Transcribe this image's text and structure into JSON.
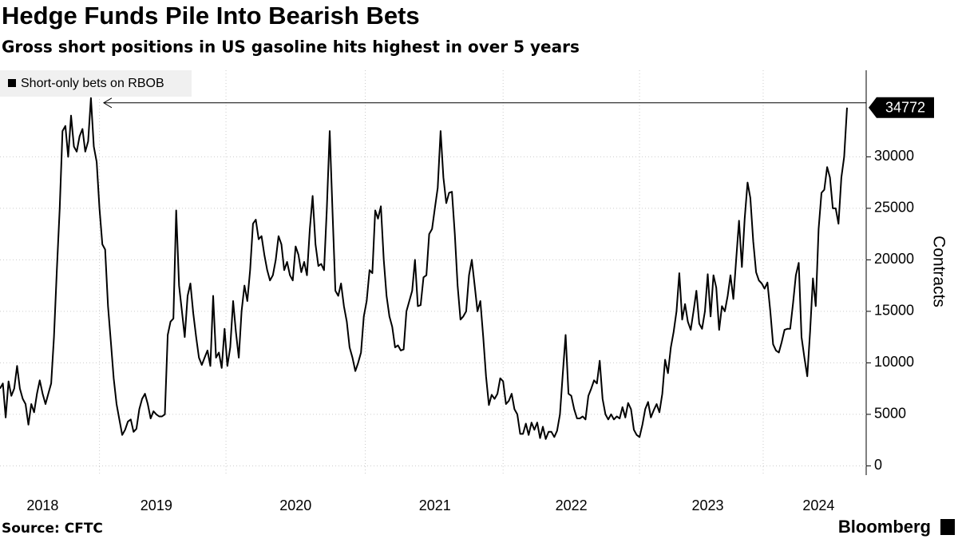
{
  "chart_data": {
    "type": "line",
    "title": "Hedge Funds Pile Into Bearish Bets",
    "subtitle": "Gross short positions in US gasoline hits highest in over 5 years",
    "ylabel": "Contracts",
    "source": "Source: CFTC",
    "brand": "Bloomberg",
    "legend": "upper left",
    "grid": true,
    "ylim": [
      -900,
      38400
    ],
    "yticks": [
      0,
      5000,
      10000,
      15000,
      20000,
      25000,
      30000
    ],
    "categories": [
      null,
      null,
      null,
      null,
      null,
      null,
      null,
      null,
      null,
      null,
      null,
      null,
      null,
      null,
      null,
      "2018",
      null,
      null,
      null,
      null,
      null,
      null,
      null,
      null,
      null,
      null,
      null,
      null,
      null,
      null,
      null,
      null,
      null,
      null,
      null,
      null,
      null,
      null,
      null,
      null,
      null,
      null,
      null,
      null,
      null,
      null,
      null,
      null,
      null,
      null,
      null,
      null,
      null,
      null,
      null,
      "2019",
      null,
      null,
      null,
      null,
      null,
      null,
      null,
      null,
      null,
      null,
      null,
      null,
      null,
      null,
      null,
      null,
      null,
      null,
      null,
      null,
      null,
      null,
      null,
      null,
      null,
      null,
      null,
      null,
      null,
      null,
      null,
      null,
      null,
      null,
      null,
      null,
      null,
      null,
      null,
      null,
      null,
      null,
      null,
      null,
      null,
      null,
      null,
      null,
      "2020",
      null,
      null,
      null,
      null,
      null,
      null,
      null,
      null,
      null,
      null,
      null,
      null,
      null,
      null,
      null,
      null,
      null,
      null,
      null,
      null,
      null,
      null,
      null,
      null,
      null,
      null,
      null,
      null,
      null,
      null,
      null,
      null,
      null,
      null,
      null,
      null,
      null,
      null,
      null,
      null,
      null,
      null,
      null,
      null,
      null,
      null,
      null,
      null,
      "2021",
      null,
      null,
      null,
      null,
      null,
      null,
      null,
      null,
      null,
      null,
      null,
      null,
      null,
      null,
      null,
      null,
      null,
      null,
      null,
      null,
      null,
      null,
      null,
      null,
      null,
      null,
      null,
      null,
      null,
      null,
      null,
      null,
      null,
      null,
      null,
      null,
      null,
      null,
      null,
      null,
      null,
      null,
      null,
      null,
      null,
      null,
      null,
      "2022",
      null,
      null,
      null,
      null,
      null,
      null,
      null,
      null,
      null,
      null,
      null,
      null,
      null,
      null,
      null,
      null,
      null,
      null,
      null,
      null,
      null,
      null,
      null,
      null,
      null,
      null,
      null,
      null,
      null,
      null,
      null,
      null,
      null,
      null,
      null,
      null,
      null,
      null,
      null,
      null,
      null,
      null,
      null,
      null,
      null,
      null,
      null,
      "2023",
      null,
      null,
      null,
      null,
      null,
      null,
      null,
      null,
      null,
      null,
      null,
      null,
      null,
      null,
      null,
      null,
      null,
      null,
      null,
      null,
      null,
      null,
      null,
      null,
      null,
      null,
      null,
      null,
      null,
      null,
      null,
      null,
      null,
      null,
      null,
      null,
      null,
      null,
      "2024",
      null,
      null,
      null,
      null,
      null,
      null,
      null,
      null,
      null,
      null
    ],
    "series": [
      {
        "name": "Short-only bets on RBOB",
        "color": "#000000",
        "values": [
          7500,
          8000,
          4700,
          8200,
          6800,
          7500,
          9700,
          7500,
          6500,
          6000,
          4000,
          6000,
          5200,
          7000,
          8300,
          7000,
          6000,
          7000,
          8000,
          12500,
          19000,
          25000,
          32500,
          33000,
          30000,
          34000,
          31000,
          30500,
          32000,
          32700,
          30500,
          31500,
          35700,
          31000,
          29500,
          25000,
          21500,
          21000,
          15500,
          12000,
          8500,
          6000,
          4500,
          3000,
          3500,
          4300,
          4500,
          3300,
          3600,
          5500,
          6500,
          7000,
          6000,
          4600,
          5300,
          5000,
          4800,
          4800,
          5000,
          12700,
          14000,
          14300,
          24800,
          17500,
          15000,
          12500,
          16500,
          17700,
          14800,
          12500,
          10500,
          9800,
          10500,
          11200,
          9700,
          16500,
          10500,
          11000,
          9500,
          13300,
          9700,
          11500,
          16000,
          13000,
          10500,
          15000,
          17500,
          16000,
          19000,
          23500,
          23900,
          22000,
          22300,
          20500,
          19000,
          18000,
          18500,
          20000,
          22300,
          21500,
          19000,
          19800,
          18500,
          18000,
          21300,
          20500,
          18800,
          19800,
          18500,
          23000,
          26200,
          21500,
          19400,
          19600,
          19000,
          25000,
          32500,
          24500,
          17000,
          16500,
          17700,
          15500,
          14000,
          11500,
          10500,
          9200,
          10000,
          11000,
          14500,
          16000,
          19000,
          18700,
          24800,
          24000,
          25200,
          20000,
          16500,
          14500,
          13500,
          11500,
          11700,
          11200,
          11300,
          15000,
          16000,
          17000,
          20000,
          15500,
          15600,
          18300,
          18500,
          22500,
          23000,
          25000,
          27000,
          32500,
          28000,
          25500,
          26500,
          26600,
          22500,
          17500,
          14200,
          14500,
          15000,
          18500,
          20000,
          17500,
          15000,
          16000,
          12500,
          8700,
          5900,
          6900,
          6500,
          7000,
          8500,
          8200,
          6000,
          6300,
          7000,
          5500,
          5000,
          3100,
          3100,
          4100,
          3000,
          4200,
          3500,
          4200,
          2700,
          3800,
          2600,
          3300,
          3300,
          2800,
          3400,
          5000,
          9000,
          12700,
          7000,
          6800,
          5500,
          4600,
          4600,
          4800,
          4500,
          6800,
          7500,
          8300,
          8000,
          10200,
          6500,
          5000,
          4500,
          5000,
          4500,
          4800,
          4600,
          5700,
          4700,
          6100,
          5500,
          3500,
          3000,
          2800,
          4000,
          5500,
          6200,
          4700,
          5400,
          6000,
          5200,
          7000,
          10300,
          9000,
          11500,
          13000,
          15000,
          18700,
          14200,
          15700,
          14000,
          13200,
          15000,
          17000,
          13800,
          13300,
          15000,
          18600,
          14500,
          18500,
          17300,
          13200,
          15500,
          15000,
          16500,
          18500,
          16200,
          20000,
          23800,
          19300,
          24000,
          27500,
          26000,
          21800,
          18800,
          18000,
          17700,
          17200,
          17800,
          15000,
          11800,
          11200,
          11000,
          12000,
          13200,
          13300,
          13300,
          15800,
          18500,
          19700,
          12500,
          10500,
          8700,
          13000,
          18200,
          15500,
          23000,
          26500,
          26800,
          29000,
          28000,
          25000,
          25000,
          23500,
          28000,
          30000,
          34772
        ]
      }
    ]
  }
}
